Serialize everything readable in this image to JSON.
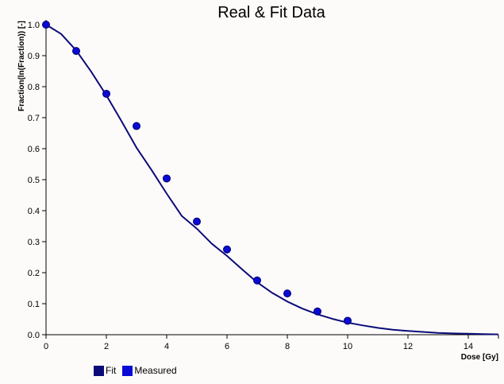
{
  "chart_data": {
    "type": "line",
    "title": "Real & Fit Data",
    "xlabel": "Dose [Gy]",
    "ylabel": "Fraction(ln(Fraction)) [-]",
    "xlim": [
      0,
      15
    ],
    "ylim": [
      0,
      1.0
    ],
    "x_ticks": [
      0,
      2,
      4,
      6,
      8,
      10,
      12,
      14
    ],
    "x_tick_labels": [
      "0",
      "2",
      "4",
      "6",
      "8",
      "10",
      "12",
      "14"
    ],
    "y_ticks": [
      0,
      0.1,
      0.2,
      0.3,
      0.4,
      0.5,
      0.6,
      0.7,
      0.8,
      0.9,
      1.0
    ],
    "y_tick_labels": [
      "0.0",
      "0.1",
      "0.2",
      "0.3",
      "0.4",
      "0.5",
      "0.6",
      "0.7",
      "0.8",
      "0.9",
      "1.0"
    ],
    "grid": false,
    "legend_position": "bottom-left",
    "series": [
      {
        "name": "Fit",
        "kind": "line",
        "color": "#0b0b7a",
        "x": [
          0,
          0.5,
          1,
          1.5,
          2,
          2.5,
          3,
          3.5,
          4,
          4.5,
          5,
          5.5,
          6,
          6.5,
          7,
          7.5,
          8,
          8.5,
          9,
          9.5,
          10,
          10.5,
          11,
          11.5,
          12,
          12.5,
          13,
          13.5,
          14,
          14.5,
          15
        ],
        "y": [
          1.0,
          0.97,
          0.917,
          0.848,
          0.772,
          0.689,
          0.603,
          0.531,
          0.455,
          0.383,
          0.342,
          0.293,
          0.254,
          0.211,
          0.169,
          0.135,
          0.107,
          0.084,
          0.066,
          0.051,
          0.039,
          0.03,
          0.022,
          0.016,
          0.012,
          0.009,
          0.006,
          0.004,
          0.003,
          0.002,
          0.001
        ]
      },
      {
        "name": "Measured",
        "kind": "scatter",
        "color": "#0a0ad6",
        "x": [
          0,
          1,
          2,
          3,
          4,
          5,
          6,
          7,
          8,
          9,
          10
        ],
        "y": [
          1.0,
          0.915,
          0.777,
          0.673,
          0.504,
          0.365,
          0.275,
          0.175,
          0.133,
          0.075,
          0.045
        ]
      }
    ]
  }
}
